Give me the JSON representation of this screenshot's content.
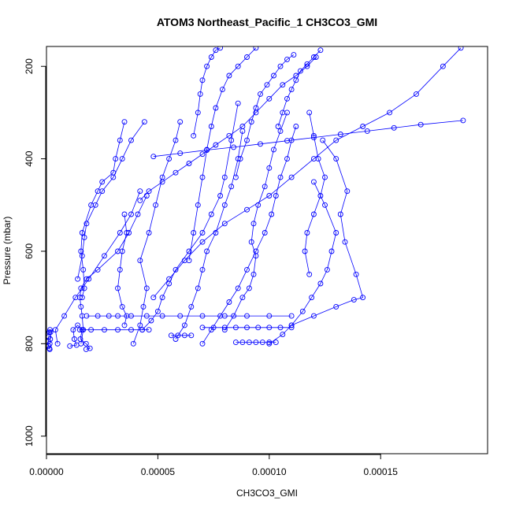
{
  "chart_data": {
    "type": "line",
    "title": "ATOM3 Northeast_Pacific_1 CH3CO3_GMI",
    "xlabel": "CH3CO3_GMI",
    "ylabel": "Pressure (mbar)",
    "xlim": [
      0,
      0.000198
    ],
    "ylim": [
      1038,
      157
    ],
    "y_reversed": true,
    "xticks": [
      0,
      5e-05,
      0.0001,
      0.00015
    ],
    "xtick_labels": [
      "0.00000",
      "0.00005",
      "0.00010",
      "0.00015"
    ],
    "yticks": [
      200,
      400,
      600,
      800,
      1000
    ],
    "ytick_labels": [
      "200",
      "400",
      "600",
      "800",
      "1000"
    ],
    "grid": false,
    "legend": "none",
    "series_color": "#0000ff",
    "marker": "open-circle",
    "series": [
      {
        "x": [
          1.5e-06,
          1.7e-06,
          1.8e-06,
          1.6e-06,
          1.3e-06,
          1e-06,
          8e-07,
          1e-06,
          1.3e-06,
          1.5e-06
        ],
        "y": [
          800,
          790,
          775,
          770,
          775,
          785,
          795,
          805,
          810,
          812
        ]
      },
      {
        "x": [
          1.05e-05,
          1.35e-05,
          1.25e-05,
          1.2e-05,
          1.4e-05,
          1.6e-05,
          1.52e-05,
          1.78e-05,
          1.95e-05,
          1.78e-05
        ],
        "y": [
          805,
          803,
          790,
          770,
          760,
          770,
          790,
          800,
          810,
          812
        ]
      },
      {
        "x": [
          1.55e-05,
          1.65e-05,
          1.6e-05,
          1.55e-05,
          1.5e-05,
          1.55e-05,
          1.8e-05,
          2.3e-05,
          3.2e-05,
          3.7e-05,
          4.1e-05,
          4.5e-05
        ],
        "y": [
          800,
          770,
          740,
          720,
          700,
          680,
          660,
          640,
          600,
          560,
          520,
          480
        ]
      },
      {
        "x": [
          1.6e-05,
          1.7e-05,
          1.65e-05,
          1.55e-05,
          1.6e-05,
          2e-05,
          2.3e-05,
          2.5e-05,
          3e-05,
          3.1e-05,
          3.3e-05,
          3.5e-05
        ],
        "y": [
          700,
          680,
          640,
          600,
          560,
          500,
          470,
          450,
          430,
          400,
          360,
          320
        ]
      },
      {
        "x": [
          3.5e-05,
          3.6e-05,
          3.4e-05,
          3.3e-05,
          3.2e-05,
          3.4e-05,
          3.6e-05,
          3.5e-05
        ],
        "y": [
          520,
          560,
          600,
          640,
          680,
          720,
          740,
          760
        ]
      },
      {
        "x": [
          3.9e-05,
          4.2e-05,
          4.35e-05,
          4.5e-05,
          4.2e-05,
          4.6e-05,
          4.9e-05,
          5.2e-05,
          5.5e-05,
          5.8e-05,
          6e-05
        ],
        "y": [
          800,
          760,
          720,
          680,
          620,
          560,
          500,
          440,
          400,
          360,
          320
        ]
      },
      {
        "x": [
          4.3e-05,
          4.7e-05,
          5e-05,
          5.2e-05,
          5.5e-05,
          5.8e-05,
          6.4e-05,
          7e-05,
          7.4e-05,
          7.8e-05,
          8e-05,
          8.3e-05,
          8.6e-05
        ],
        "y": [
          770,
          750,
          730,
          700,
          670,
          640,
          600,
          560,
          520,
          480,
          440,
          360,
          280
        ]
      },
      {
        "x": [
          5.8e-05,
          6.2e-05,
          6.5e-05,
          6.8e-05,
          7e-05,
          7.2e-05,
          7.6e-05,
          8e-05,
          8.3e-05,
          8.6e-05,
          8.8e-05
        ],
        "y": [
          790,
          760,
          720,
          680,
          640,
          600,
          560,
          500,
          460,
          400,
          340
        ]
      },
      {
        "x": [
          7e-05,
          7.4e-05,
          7.8e-05,
          8.2e-05,
          8.6e-05,
          9e-05,
          9.4e-05,
          9.8e-05,
          0.000101,
          0.000103,
          0.000105,
          0.000108,
          0.00011,
          0.000112
        ],
        "y": [
          800,
          770,
          740,
          710,
          680,
          640,
          600,
          560,
          520,
          480,
          440,
          400,
          360,
          330
        ]
      },
      {
        "x": [
          8e-05,
          8.4e-05,
          8.8e-05,
          9.1e-05,
          9.3e-05,
          9.4e-05,
          9.2e-05,
          9.3e-05,
          9.5e-05,
          9.8e-05,
          0.0001,
          0.000102,
          0.000105,
          0.000108
        ],
        "y": [
          770,
          740,
          700,
          680,
          650,
          610,
          580,
          540,
          500,
          460,
          420,
          380,
          340,
          300
        ]
      },
      {
        "x": [
          0.0001,
          0.000106,
          0.00011,
          0.000115,
          0.000119,
          0.000123,
          0.000126,
          0.000128,
          0.00013,
          0.000125,
          0.00012
        ],
        "y": [
          800,
          780,
          760,
          730,
          700,
          670,
          640,
          600,
          560,
          500,
          450
        ]
      },
      {
        "x": [
          0.00011,
          0.00012,
          0.00013,
          0.000138,
          0.000142,
          0.000139,
          0.000134,
          0.000132,
          0.000135,
          0.00013,
          0.000124
        ],
        "y": [
          760,
          740,
          720,
          705,
          700,
          650,
          580,
          520,
          470,
          400,
          360
        ]
      },
      {
        "x": [
          0.000118,
          0.000116,
          0.000117,
          0.00012,
          0.000123,
          0.000125,
          0.000122,
          0.00012,
          0.000118
        ],
        "y": [
          650,
          600,
          560,
          520,
          480,
          440,
          400,
          350,
          300
        ]
      },
      {
        "x": [
          1.8e-05,
          2.3e-05,
          2.8e-05,
          3.2e-05,
          3.8e-05,
          4.5e-05,
          5.2e-05,
          6e-05,
          7e-05,
          8e-05,
          9e-05,
          0.0001,
          0.00011
        ],
        "y": [
          740,
          740,
          740,
          740,
          740,
          740,
          740,
          740,
          740,
          740,
          740,
          740,
          740
        ]
      },
      {
        "x": [
          1.5e-05,
          2e-05,
          2.6e-05,
          3.2e-05,
          3.8e-05,
          4.3e-05,
          4.6e-05
        ],
        "y": [
          770,
          770,
          770,
          770,
          770,
          770,
          770
        ]
      },
      {
        "x": [
          7e-05,
          7.5e-05,
          8e-05,
          8.5e-05,
          9e-05,
          9.5e-05,
          0.0001,
          0.000105,
          0.00011
        ],
        "y": [
          765,
          765,
          765,
          765,
          765,
          765,
          765,
          765,
          765
        ]
      },
      {
        "x": [
          8.5e-05,
          8.8e-05,
          9.1e-05,
          9.4e-05,
          9.7e-05,
          0.0001,
          0.000103
        ],
        "y": [
          797,
          797,
          797,
          797,
          797,
          797,
          797
        ]
      },
      {
        "x": [
          5.6e-05,
          5.9e-05,
          6.2e-05,
          6.5e-05
        ],
        "y": [
          782,
          782,
          782,
          782
        ]
      },
      {
        "x": [
          5e-06,
          4e-06,
          8e-06,
          1.3e-05,
          1.9e-05,
          2.6e-05,
          3.3e-05,
          3.8e-05,
          4.2e-05
        ],
        "y": [
          800,
          770,
          740,
          700,
          660,
          610,
          560,
          520,
          470
        ]
      },
      {
        "x": [
          1.4e-05,
          1.6e-05,
          1.7e-05,
          1.8e-05,
          2.2e-05,
          2.5e-05,
          3e-05,
          3.4e-05,
          3.8e-05,
          4.4e-05
        ],
        "y": [
          660,
          610,
          570,
          540,
          500,
          470,
          440,
          400,
          360,
          320
        ]
      },
      {
        "x": [
          4.2e-05,
          4.6e-05,
          5.2e-05,
          5.8e-05,
          6.4e-05,
          7e-05,
          7.6e-05,
          8.2e-05,
          8.8e-05,
          9.4e-05,
          0.0001,
          0.000106,
          0.000112,
          0.000117,
          0.000121
        ],
        "y": [
          490,
          470,
          450,
          430,
          410,
          390,
          370,
          350,
          330,
          300,
          270,
          240,
          220,
          200,
          180
        ]
      },
      {
        "x": [
          4.8e-05,
          5.5e-05,
          6.2e-05,
          7e-05,
          8e-05,
          9e-05,
          0.0001,
          0.00011,
          0.00012,
          0.00013,
          0.000142,
          0.000154,
          0.000166,
          0.000178,
          0.000186
        ],
        "y": [
          700,
          660,
          620,
          580,
          540,
          510,
          480,
          440,
          400,
          360,
          330,
          300,
          260,
          200,
          160
        ]
      },
      {
        "x": [
          4.8e-05,
          6e-05,
          7.2e-05,
          8.4e-05,
          9.6e-05,
          0.000108,
          0.00012,
          0.000132,
          0.000144,
          0.000156,
          0.000168,
          0.000187
        ],
        "y": [
          395,
          388,
          381,
          375,
          368,
          361,
          354,
          347,
          340,
          333,
          326,
          317
        ]
      },
      {
        "x": [
          6.4e-05,
          6.6e-05,
          6.8e-05,
          7e-05,
          7.2e-05,
          7.4e-05,
          7.6e-05,
          7.9e-05,
          8.2e-05,
          8.6e-05,
          9e-05,
          9.4e-05
        ],
        "y": [
          620,
          560,
          500,
          440,
          380,
          330,
          290,
          250,
          220,
          200,
          180,
          160
        ]
      },
      {
        "x": [
          6.6e-05,
          6.8e-05,
          6.9e-05,
          7e-05,
          7.2e-05,
          7.4e-05,
          7.6e-05,
          7.8e-05
        ],
        "y": [
          350,
          300,
          260,
          230,
          200,
          180,
          165,
          160
        ]
      },
      {
        "x": [
          8.5e-05,
          8.7e-05,
          9e-05,
          9.2e-05,
          9.4e-05,
          9.6e-05,
          9.9e-05,
          0.000102,
          0.000105,
          0.000108,
          0.000111
        ],
        "y": [
          440,
          400,
          360,
          320,
          290,
          260,
          240,
          220,
          200,
          185,
          175
        ]
      },
      {
        "x": [
          0.000104,
          0.000106,
          0.000108,
          0.00011,
          0.000112,
          0.000114,
          0.000117,
          0.00012,
          0.000123
        ],
        "y": [
          330,
          300,
          270,
          250,
          230,
          210,
          195,
          180,
          165
        ]
      }
    ]
  }
}
